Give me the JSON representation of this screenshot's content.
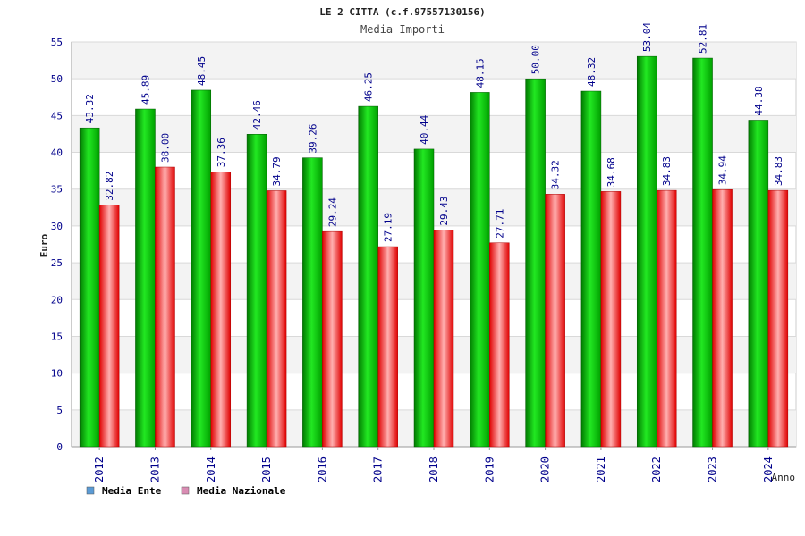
{
  "chart_data": {
    "type": "bar",
    "title": "LE 2 CITTA (c.f.97557130156)",
    "subtitle": "Media Importi",
    "xlabel": "Anno",
    "ylabel": "Euro",
    "ylim": [
      0,
      55
    ],
    "y_ticks": [
      "0",
      "5",
      "10",
      "15",
      "20",
      "25",
      "30",
      "35",
      "40",
      "45",
      "50",
      "55"
    ],
    "grid": true,
    "legend_position": "bottom-left",
    "categories": [
      "2012",
      "2013",
      "2014",
      "2015",
      "2016",
      "2017",
      "2018",
      "2019",
      "2020",
      "2021",
      "2022",
      "2023",
      "2024"
    ],
    "series": [
      {
        "name": "Media Ente",
        "legend_color": "#5b9bd5",
        "values": [
          43.32,
          45.89,
          48.45,
          42.46,
          39.26,
          46.25,
          40.44,
          48.15,
          50.0,
          48.32,
          53.04,
          52.81,
          44.38
        ],
        "labels": [
          "43.32",
          "45.89",
          "48.45",
          "42.46",
          "39.26",
          "46.25",
          "40.44",
          "48.15",
          "50.00",
          "48.32",
          "53.04",
          "52.81",
          "44.38"
        ]
      },
      {
        "name": "Media Nazionale",
        "legend_color": "#d98cb3",
        "values": [
          32.82,
          38.0,
          37.36,
          34.79,
          29.24,
          27.19,
          29.43,
          27.71,
          34.32,
          34.68,
          34.83,
          34.94,
          34.83
        ],
        "labels": [
          "32.82",
          "38.00",
          "37.36",
          "34.79",
          "29.24",
          "27.19",
          "29.43",
          "27.71",
          "34.32",
          "34.68",
          "34.83",
          "34.94",
          "34.83"
        ]
      }
    ]
  },
  "colors": {
    "ente_dark": "#007a00",
    "ente_light": "#22e822",
    "nazionale_dark": "#e00000",
    "nazionale_light": "#ffb0b0",
    "axis_text": "#00008b",
    "grid": "#d9d9d9",
    "band": "#f3f3f3"
  }
}
